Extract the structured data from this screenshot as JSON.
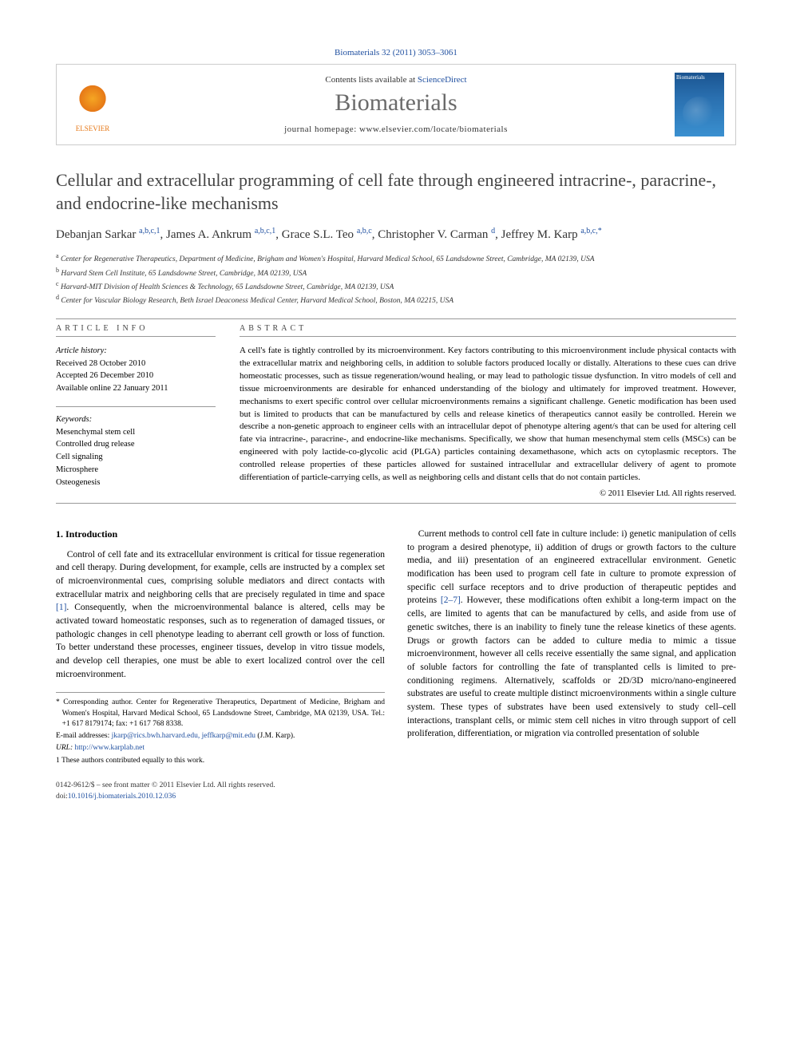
{
  "citation": "Biomaterials 32 (2011) 3053–3061",
  "header": {
    "contents_prefix": "Contents lists available at ",
    "sciencedirect": "ScienceDirect",
    "journal_name": "Biomaterials",
    "homepage_prefix": "journal homepage: ",
    "homepage_url": "www.elsevier.com/locate/biomaterials",
    "publisher_name": "ELSEVIER",
    "cover_label": "Biomaterials"
  },
  "title": "Cellular and extracellular programming of cell fate through engineered intracrine-, paracrine-, and endocrine-like mechanisms",
  "authors_html": "Debanjan Sarkar <sup>a,b,c,1</sup>, James A. Ankrum <sup>a,b,c,1</sup>, Grace S.L. Teo <sup>a,b,c</sup>, Christopher V. Carman <sup>d</sup>, Jeffrey M. Karp <sup>a,b,c,*</sup>",
  "affiliations": [
    "a Center for Regenerative Therapeutics, Department of Medicine, Brigham and Women's Hospital, Harvard Medical School, 65 Landsdowne Street, Cambridge, MA 02139, USA",
    "b Harvard Stem Cell Institute, 65 Landsdowne Street, Cambridge, MA 02139, USA",
    "c Harvard-MIT Division of Health Sciences & Technology, 65 Landsdowne Street, Cambridge, MA 02139, USA",
    "d Center for Vascular Biology Research, Beth Israel Deaconess Medical Center, Harvard Medical School, Boston, MA 02215, USA"
  ],
  "info": {
    "section_label": "ARTICLE INFO",
    "history_label": "Article history:",
    "received": "Received 28 October 2010",
    "accepted": "Accepted 26 December 2010",
    "online": "Available online 22 January 2011",
    "keywords_label": "Keywords:",
    "keywords": [
      "Mesenchymal stem cell",
      "Controlled drug release",
      "Cell signaling",
      "Microsphere",
      "Osteogenesis"
    ]
  },
  "abstract": {
    "section_label": "ABSTRACT",
    "text": "A cell's fate is tightly controlled by its microenvironment. Key factors contributing to this microenvironment include physical contacts with the extracellular matrix and neighboring cells, in addition to soluble factors produced locally or distally. Alterations to these cues can drive homeostatic processes, such as tissue regeneration/wound healing, or may lead to pathologic tissue dysfunction. In vitro models of cell and tissue microenvironments are desirable for enhanced understanding of the biology and ultimately for improved treatment. However, mechanisms to exert specific control over cellular microenvironments remains a significant challenge. Genetic modification has been used but is limited to products that can be manufactured by cells and release kinetics of therapeutics cannot easily be controlled. Herein we describe a non-genetic approach to engineer cells with an intracellular depot of phenotype altering agent/s that can be used for altering cell fate via intracrine-, paracrine-, and endocrine-like mechanisms. Specifically, we show that human mesenchymal stem cells (MSCs) can be engineered with poly lactide-co-glycolic acid (PLGA) particles containing dexamethasone, which acts on cytoplasmic receptors. The controlled release properties of these particles allowed for sustained intracellular and extracellular delivery of agent to promote differentiation of particle-carrying cells, as well as neighboring cells and distant cells that do not contain particles.",
    "copyright": "© 2011 Elsevier Ltd. All rights reserved."
  },
  "body": {
    "sec_num": "1.",
    "sec_title": "Introduction",
    "col1_p1": "Control of cell fate and its extracellular environment is critical for tissue regeneration and cell therapy. During development, for example, cells are instructed by a complex set of microenvironmental cues, comprising soluble mediators and direct contacts with extracellular matrix and neighboring cells that are precisely regulated in time and space [1]. Consequently, when the microenvironmental balance is altered, cells may be activated toward homeostatic responses, such as to regeneration of damaged tissues, or pathologic changes in cell phenotype leading to aberrant cell growth or loss of function. To better understand these processes, engineer tissues, develop in vitro tissue models, and develop cell therapies, one must be able to exert localized control over the cell microenvironment.",
    "col2_p1": "Current methods to control cell fate in culture include: i) genetic manipulation of cells to program a desired phenotype, ii) addition of drugs or growth factors to the culture media, and iii) presentation of an engineered extracellular environment. Genetic modification has been used to program cell fate in culture to promote expression of specific cell surface receptors and to drive production of therapeutic peptides and proteins [2–7]. However, these modifications often exhibit a long-term impact on the cells, are limited to agents that can be manufactured by cells, and aside from use of genetic switches, there is an inability to finely tune the release kinetics of these agents. Drugs or growth factors can be added to culture media to mimic a tissue microenvironment, however all cells receive essentially the same signal, and application of soluble factors for controlling the fate of transplanted cells is limited to pre-conditioning regimens. Alternatively, scaffolds or 2D/3D micro/nano-engineered substrates are useful to create multiple distinct microenvironments within a single culture system. These types of substrates have been used extensively to study cell–cell interactions, transplant cells, or mimic stem cell niches in vitro through support of cell proliferation, differentiation, or migration via controlled presentation of soluble"
  },
  "footnotes": {
    "corresponding": "* Corresponding author. Center for Regenerative Therapeutics, Department of Medicine, Brigham and Women's Hospital, Harvard Medical School, 65 Landsdowne Street, Cambridge, MA 02139, USA. Tel.: +1 617 8179174; fax: +1 617 768 8338.",
    "email_label": "E-mail addresses: ",
    "emails": "jkarp@rics.bwh.harvard.edu, jeffkarp@mit.edu",
    "email_suffix": " (J.M. Karp).",
    "url_label": "URL: ",
    "url": "http://www.karplab.net",
    "equal": "1 These authors contributed equally to this work."
  },
  "footer": {
    "left_line1": "0142-9612/$ – see front matter © 2011 Elsevier Ltd. All rights reserved.",
    "left_line2_prefix": "doi:",
    "doi": "10.1016/j.biomaterials.2010.12.036"
  },
  "colors": {
    "link": "#2050a0",
    "publisher_orange": "#e67817",
    "journal_gray": "#6a6a6a",
    "border": "#cccccc",
    "divider": "#999999"
  }
}
